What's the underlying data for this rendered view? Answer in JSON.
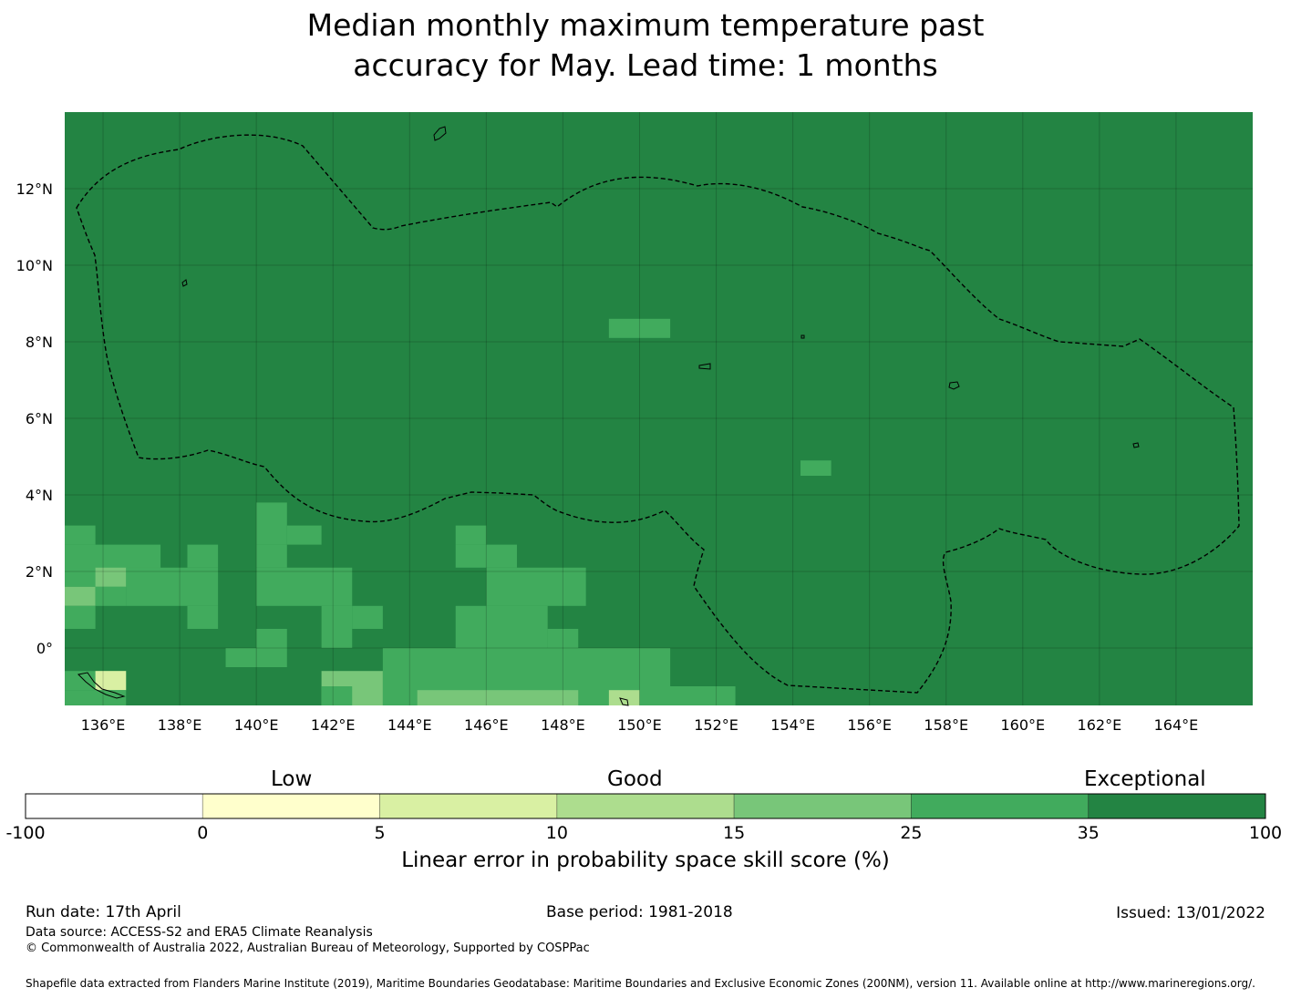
{
  "title": {
    "line1": "Median monthly maximum temperature past",
    "line2": "accuracy for May. Lead time: 1 months"
  },
  "map": {
    "lon_ticks": [
      "136°E",
      "138°E",
      "140°E",
      "142°E",
      "144°E",
      "146°E",
      "148°E",
      "150°E",
      "152°E",
      "154°E",
      "156°E",
      "158°E",
      "160°E",
      "162°E",
      "164°E"
    ],
    "lat_ticks": [
      "12°N",
      "10°N",
      "8°N",
      "6°N",
      "4°N",
      "2°N",
      "0°"
    ],
    "extent": {
      "lon_min": 135,
      "lon_max": 166,
      "lat_min": -1.5,
      "lat_max": 14
    },
    "background_color": "#238443",
    "boundary_line": "dashed",
    "cells": [
      {
        "lon0": 149.2,
        "lon1": 150.8,
        "lat0": 8.1,
        "lat1": 8.6,
        "color": "#41ab5d"
      },
      {
        "lon0": 154.2,
        "lon1": 155.0,
        "lat0": 4.5,
        "lat1": 4.9,
        "color": "#41ab5d"
      },
      {
        "lon0": 135.0,
        "lon1": 135.8,
        "lat0": 2.7,
        "lat1": 3.2,
        "color": "#41ab5d"
      },
      {
        "lon0": 135.0,
        "lon1": 137.5,
        "lat0": 1.6,
        "lat1": 2.7,
        "color": "#41ab5d"
      },
      {
        "lon0": 135.8,
        "lon1": 136.6,
        "lat0": 1.6,
        "lat1": 2.1,
        "color": "#78c679"
      },
      {
        "lon0": 135.0,
        "lon1": 135.8,
        "lat0": 1.1,
        "lat1": 1.6,
        "color": "#78c679"
      },
      {
        "lon0": 136.6,
        "lon1": 139.0,
        "lat0": 1.1,
        "lat1": 2.1,
        "color": "#41ab5d"
      },
      {
        "lon0": 138.2,
        "lon1": 139.0,
        "lat0": 2.1,
        "lat1": 2.7,
        "color": "#41ab5d"
      },
      {
        "lon0": 138.2,
        "lon1": 139.0,
        "lat0": 0.5,
        "lat1": 1.1,
        "color": "#41ab5d"
      },
      {
        "lon0": 135.0,
        "lon1": 135.8,
        "lat0": 0.5,
        "lat1": 1.1,
        "color": "#41ab5d"
      },
      {
        "lon0": 135.8,
        "lon1": 136.6,
        "lat0": 1.1,
        "lat1": 1.6,
        "color": "#41ab5d"
      },
      {
        "lon0": 140.0,
        "lon1": 140.8,
        "lat0": 2.7,
        "lat1": 3.8,
        "color": "#41ab5d"
      },
      {
        "lon0": 140.8,
        "lon1": 141.7,
        "lat0": 2.7,
        "lat1": 3.2,
        "color": "#41ab5d"
      },
      {
        "lon0": 140.0,
        "lon1": 142.5,
        "lat0": 1.1,
        "lat1": 2.1,
        "color": "#41ab5d"
      },
      {
        "lon0": 140.0,
        "lon1": 140.8,
        "lat0": 2.1,
        "lat1": 2.7,
        "color": "#41ab5d"
      },
      {
        "lon0": 141.7,
        "lon1": 142.5,
        "lat0": 0.0,
        "lat1": 1.1,
        "color": "#41ab5d"
      },
      {
        "lon0": 142.5,
        "lon1": 143.3,
        "lat0": 0.5,
        "lat1": 1.1,
        "color": "#41ab5d"
      },
      {
        "lon0": 140.0,
        "lon1": 140.8,
        "lat0": -0.5,
        "lat1": 0.5,
        "color": "#41ab5d"
      },
      {
        "lon0": 139.2,
        "lon1": 140.0,
        "lat0": -0.5,
        "lat1": 0.0,
        "color": "#41ab5d"
      },
      {
        "lon0": 145.2,
        "lon1": 146.0,
        "lat0": 2.7,
        "lat1": 3.2,
        "color": "#41ab5d"
      },
      {
        "lon0": 145.2,
        "lon1": 146.8,
        "lat0": 2.1,
        "lat1": 2.7,
        "color": "#41ab5d"
      },
      {
        "lon0": 146.0,
        "lon1": 148.6,
        "lat0": 1.1,
        "lat1": 2.1,
        "color": "#41ab5d"
      },
      {
        "lon0": 146.0,
        "lon1": 147.6,
        "lat0": 0.5,
        "lat1": 1.1,
        "color": "#41ab5d"
      },
      {
        "lon0": 145.2,
        "lon1": 147.6,
        "lat0": 0.0,
        "lat1": 1.1,
        "color": "#41ab5d"
      },
      {
        "lon0": 147.6,
        "lon1": 148.4,
        "lat0": 0.0,
        "lat1": 0.5,
        "color": "#41ab5d"
      },
      {
        "lon0": 143.3,
        "lon1": 150.8,
        "lat0": -1.0,
        "lat1": 0.0,
        "color": "#41ab5d"
      },
      {
        "lon0": 143.3,
        "lon1": 152.5,
        "lat0": -1.5,
        "lat1": -1.0,
        "color": "#41ab5d"
      },
      {
        "lon0": 141.7,
        "lon1": 143.3,
        "lat0": -1.5,
        "lat1": -0.6,
        "color": "#78c679"
      },
      {
        "lon0": 141.7,
        "lon1": 142.5,
        "lat0": -1.5,
        "lat1": -1.0,
        "color": "#41ab5d"
      },
      {
        "lon0": 144.2,
        "lon1": 148.4,
        "lat0": -1.5,
        "lat1": -1.1,
        "color": "#78c679"
      },
      {
        "lon0": 149.2,
        "lon1": 150.0,
        "lat0": -1.5,
        "lat1": -1.1,
        "color": "#addd8e"
      },
      {
        "lon0": 135.0,
        "lon1": 136.6,
        "lat0": -1.1,
        "lat1": -0.6,
        "color": "#41ab5d"
      },
      {
        "lon0": 135.8,
        "lon1": 136.6,
        "lat0": -1.1,
        "lat1": -0.6,
        "color": "#d9f0a3"
      },
      {
        "lon0": 135.0,
        "lon1": 136.6,
        "lat0": -1.5,
        "lat1": -1.1,
        "color": "#41ab5d"
      }
    ]
  },
  "legend": {
    "categories": [
      "Low",
      "Good",
      "Exceptional"
    ],
    "bins": [
      {
        "color": "#ffffff"
      },
      {
        "color": "#ffffcc"
      },
      {
        "color": "#d9f0a3"
      },
      {
        "color": "#addd8e"
      },
      {
        "color": "#78c679"
      },
      {
        "color": "#41ab5d"
      },
      {
        "color": "#238443"
      }
    ],
    "ticks": [
      "-100",
      "0",
      "5",
      "10",
      "15",
      "25",
      "35",
      "100"
    ],
    "label": "Linear error in probability space skill score (%)"
  },
  "footer": {
    "run_date": "Run date: 17th April",
    "base_period": "Base period: 1981-2018",
    "issued": "Issued: 13/01/2022",
    "data_source": "Data source: ACCESS-S2 and ERA5 Climate Reanalysis",
    "copyright": "© Commonwealth of Australia 2022, Australian Bureau of Meteorology, Supported by COSPPac",
    "shapefile": "Shapefile data extracted from Flanders Marine Institute (2019), Maritime Boundaries Geodatabase: Maritime Boundaries and Exclusive Economic Zones (200NM), version 11. Available online at http://www.marineregions.org/."
  }
}
